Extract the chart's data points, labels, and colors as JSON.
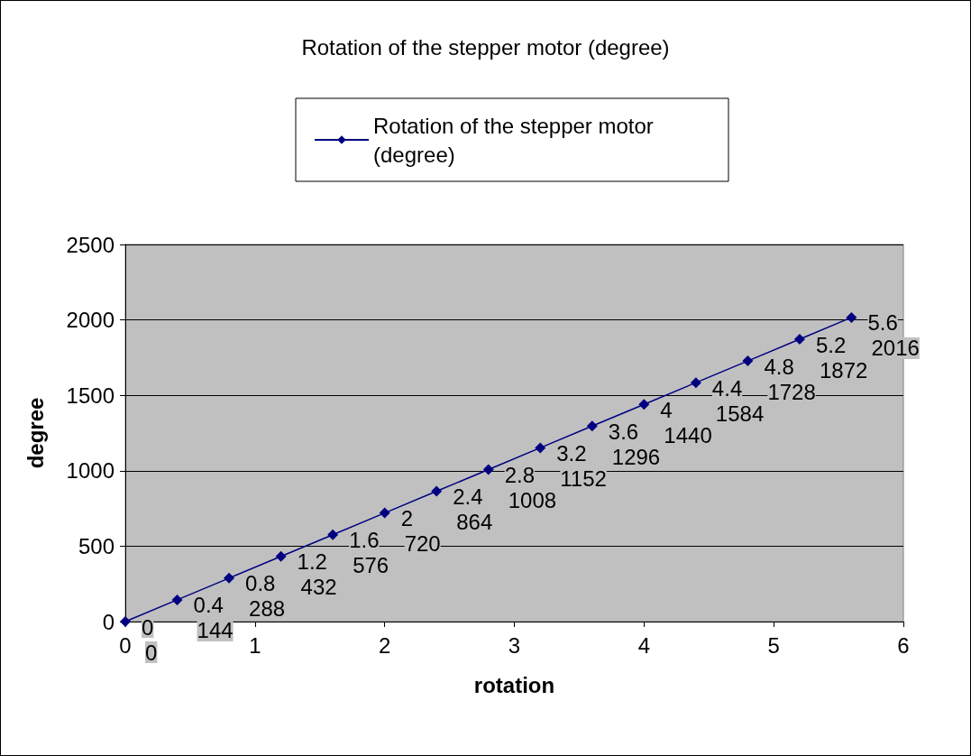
{
  "chart_data": {
    "type": "line",
    "title": "Rotation of the stepper motor (degree)",
    "xlabel": "rotation",
    "ylabel": "degree",
    "x": [
      0,
      0.4,
      0.8,
      1.2,
      1.6,
      2,
      2.4,
      2.8,
      3.2,
      3.6,
      4,
      4.4,
      4.8,
      5.2,
      5.6
    ],
    "series": [
      {
        "name": "Rotation of the stepper motor (degree)",
        "color": "#000080",
        "values": [
          0,
          144,
          288,
          432,
          576,
          720,
          864,
          1008,
          1152,
          1296,
          1440,
          1584,
          1728,
          1872,
          2016
        ]
      }
    ],
    "data_labels": true,
    "annotations": [
      {
        "text": "0",
        "x": 0,
        "y": 0
      },
      {
        "text": "0.4",
        "x": 0.4,
        "y": 144
      },
      {
        "text": "0.8",
        "x": 0.8,
        "y": 288
      },
      {
        "text": "1.2",
        "x": 1.2,
        "y": 432
      },
      {
        "text": "1.6",
        "x": 1.6,
        "y": 576
      },
      {
        "text": "2",
        "x": 2,
        "y": 720
      },
      {
        "text": "2.4",
        "x": 2.4,
        "y": 864
      },
      {
        "text": "2.8",
        "x": 2.8,
        "y": 1008
      },
      {
        "text": "3.2",
        "x": 3.2,
        "y": 1152
      },
      {
        "text": "3.6",
        "x": 3.6,
        "y": 1296
      },
      {
        "text": "4",
        "x": 4,
        "y": 1440
      },
      {
        "text": "4.4",
        "x": 4.4,
        "y": 1584
      },
      {
        "text": "4.8",
        "x": 4.8,
        "y": 1728
      },
      {
        "text": "5.2",
        "x": 5.2,
        "y": 1872
      },
      {
        "text": "5.6",
        "x": 5.6,
        "y": 2016
      }
    ],
    "xlim": [
      0,
      6
    ],
    "xticks": [
      0,
      1,
      2,
      3,
      4,
      5,
      6
    ],
    "ylim": [
      0,
      2500
    ],
    "yticks": [
      0,
      500,
      1000,
      1500,
      2000,
      2500
    ],
    "grid": "y",
    "legend": "top",
    "marker": "diamond",
    "line_style": "solid"
  }
}
